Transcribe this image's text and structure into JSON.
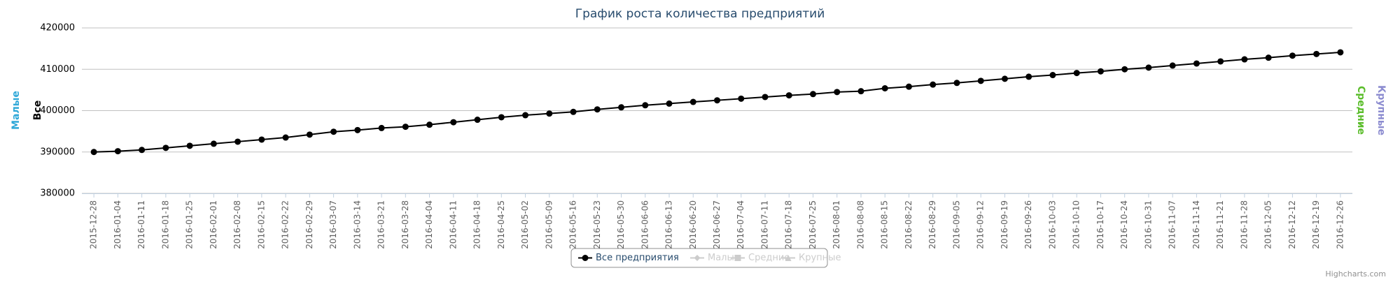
{
  "chart_data": {
    "type": "line",
    "title": "График роста количества предприятий",
    "categories": [
      "2015-12-28",
      "2016-01-04",
      "2016-01-11",
      "2016-01-18",
      "2016-01-25",
      "2016-02-01",
      "2016-02-08",
      "2016-02-15",
      "2016-02-22",
      "2016-02-29",
      "2016-03-07",
      "2016-03-14",
      "2016-03-21",
      "2016-03-28",
      "2016-04-04",
      "2016-04-11",
      "2016-04-18",
      "2016-04-25",
      "2016-05-02",
      "2016-05-09",
      "2016-05-16",
      "2016-05-23",
      "2016-05-30",
      "2016-06-06",
      "2016-06-13",
      "2016-06-20",
      "2016-06-27",
      "2016-07-04",
      "2016-07-11",
      "2016-07-18",
      "2016-07-25",
      "2016-08-01",
      "2016-08-08",
      "2016-08-15",
      "2016-08-22",
      "2016-08-29",
      "2016-09-05",
      "2016-09-12",
      "2016-09-19",
      "2016-09-26",
      "2016-10-03",
      "2016-10-10",
      "2016-10-17",
      "2016-10-24",
      "2016-10-31",
      "2016-11-07",
      "2016-11-14",
      "2016-11-21",
      "2016-11-28",
      "2016-12-05",
      "2016-12-12",
      "2016-12-19",
      "2016-12-26"
    ],
    "series": [
      {
        "name": "Все предприятия",
        "color": "#000000",
        "marker": "circle",
        "visible": true,
        "values": [
          390000,
          390200,
          390500,
          391000,
          391500,
          392000,
          392500,
          393000,
          393500,
          394200,
          394900,
          395300,
          395800,
          396100,
          396600,
          397200,
          397800,
          398400,
          398900,
          399300,
          399700,
          400300,
          400800,
          401300,
          401700,
          402100,
          402500,
          402900,
          403300,
          403700,
          404000,
          404500,
          404700,
          405400,
          405800,
          406300,
          406700,
          407200,
          407700,
          408200,
          408600,
          409100,
          409500,
          410000,
          410400,
          410900,
          411400,
          411900,
          412400,
          412800,
          413300,
          413700,
          414100
        ]
      },
      {
        "name": "Малые",
        "color": "#cccccc",
        "marker": "diamond",
        "visible": false
      },
      {
        "name": "Средние",
        "color": "#cccccc",
        "marker": "square",
        "visible": false
      },
      {
        "name": "Крупные",
        "color": "#cccccc",
        "marker": "triangle",
        "visible": false
      }
    ],
    "axis_titles": [
      {
        "text": "Малые",
        "color": "#2fa8d8",
        "side": "left"
      },
      {
        "text": "Все",
        "color": "#000000",
        "side": "left"
      },
      {
        "text": "Средние",
        "color": "#5bbd2b",
        "side": "right"
      },
      {
        "text": "Крупные",
        "color": "#8c8cd0",
        "side": "right"
      }
    ],
    "ylim": [
      380000,
      420000
    ],
    "yticks": [
      380000,
      390000,
      400000,
      410000,
      420000
    ],
    "grid": true,
    "credits": "Highcharts.com"
  }
}
